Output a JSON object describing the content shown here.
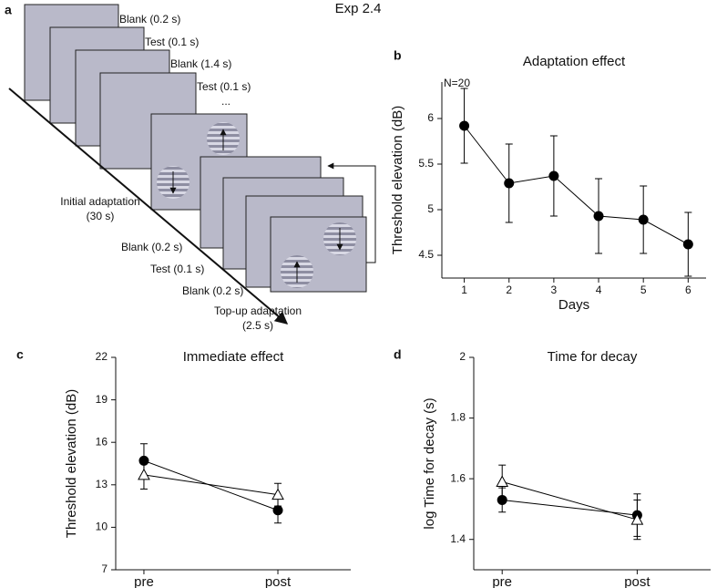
{
  "title": "Exp 2.4",
  "panel_labels": [
    "a",
    "b",
    "c",
    "d"
  ],
  "diagram": {
    "labels": [
      "Blank (0.2 s)",
      "Test (0.1 s)",
      "Blank (1.4 s)",
      "Test (0.1 s)",
      "Initial adaptation",
      "(30 s)",
      "Blank (0.2 s)",
      "Test (0.1 s)",
      "Blank (0.2 s)",
      "Top-up adaptation",
      "(2.5 s)"
    ],
    "ellipsis": "..."
  },
  "chart_data": [
    {
      "type": "line",
      "title": "Adaptation effect",
      "xlabel": "Days",
      "ylabel": "Threshold elevation (dB)",
      "annotation": "N=20",
      "x": [
        1,
        2,
        3,
        4,
        5,
        6
      ],
      "values": [
        5.92,
        5.29,
        5.37,
        4.93,
        4.89,
        4.62
      ],
      "errors": [
        0.41,
        0.43,
        0.44,
        0.41,
        0.37,
        0.35
      ],
      "xlim": [
        0.5,
        6.4
      ],
      "xticks": [
        1,
        2,
        3,
        4,
        5,
        6
      ],
      "ylim": [
        4.25,
        6.4
      ],
      "yticks": [
        4.5,
        5,
        {
          "value": 5.5,
          "label": "5.5"
        },
        6
      ],
      "color": "#000000"
    },
    {
      "type": "dot",
      "title": "Immediate effect",
      "ylabel": "Threshold elevation (dB)",
      "categories": [
        "pre",
        "post"
      ],
      "series": [
        {
          "marker": "circle",
          "color": "#000000",
          "values": [
            14.7,
            11.2
          ],
          "errors": [
            1.2,
            0.9
          ]
        },
        {
          "marker": "triangle",
          "color": "#000000",
          "values": [
            13.7,
            12.3
          ],
          "errors": [
            1.0,
            0.8
          ]
        }
      ],
      "ylim": [
        7,
        22
      ],
      "yticks": [
        7,
        10,
        13,
        16,
        19,
        22
      ]
    },
    {
      "type": "dot",
      "title": "Time for decay",
      "ylabel": "log Time for decay (s)",
      "categories": [
        "pre",
        "post"
      ],
      "series": [
        {
          "marker": "circle",
          "color": "#000000",
          "values": [
            1.53,
            1.48
          ],
          "errors": [
            0.04,
            0.07
          ]
        },
        {
          "marker": "triangle",
          "color": "#000000",
          "values": [
            1.59,
            1.465
          ],
          "errors": [
            0.055,
            0.065
          ]
        }
      ],
      "ylim": [
        1.3,
        2
      ],
      "yticks": [
        1.4,
        1.6,
        1.8,
        2
      ]
    }
  ]
}
